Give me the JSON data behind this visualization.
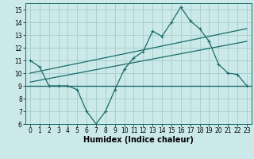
{
  "title": "",
  "xlabel": "Humidex (Indice chaleur)",
  "bg_color": "#cce9e9",
  "grid_color": "#aacfcf",
  "line_color": "#1a6b6b",
  "xlim": [
    -0.5,
    23.5
  ],
  "ylim": [
    6,
    15.5
  ],
  "xticks": [
    0,
    1,
    2,
    3,
    4,
    5,
    6,
    7,
    8,
    9,
    10,
    11,
    12,
    13,
    14,
    15,
    16,
    17,
    18,
    19,
    20,
    21,
    22,
    23
  ],
  "yticks": [
    6,
    7,
    8,
    9,
    10,
    11,
    12,
    13,
    14,
    15
  ],
  "series1_x": [
    0,
    1,
    2,
    3,
    4,
    5,
    6,
    7,
    8,
    9,
    10,
    11,
    12,
    13,
    14,
    15,
    16,
    17,
    18,
    19,
    20,
    21,
    22,
    23
  ],
  "series1_y": [
    11,
    10.5,
    9,
    9,
    9,
    8.7,
    7,
    6,
    7,
    8.7,
    10.3,
    11.2,
    11.7,
    13.3,
    12.9,
    14.0,
    15.2,
    14.1,
    13.5,
    12.5,
    10.7,
    10.0,
    9.9,
    9.0
  ],
  "series2_x": [
    0,
    23
  ],
  "series2_y": [
    10.0,
    13.5
  ],
  "series3_x": [
    0,
    23
  ],
  "series3_y": [
    9.3,
    12.5
  ],
  "hline_y": 9.0,
  "tick_fontsize": 5.5,
  "label_fontsize": 7
}
